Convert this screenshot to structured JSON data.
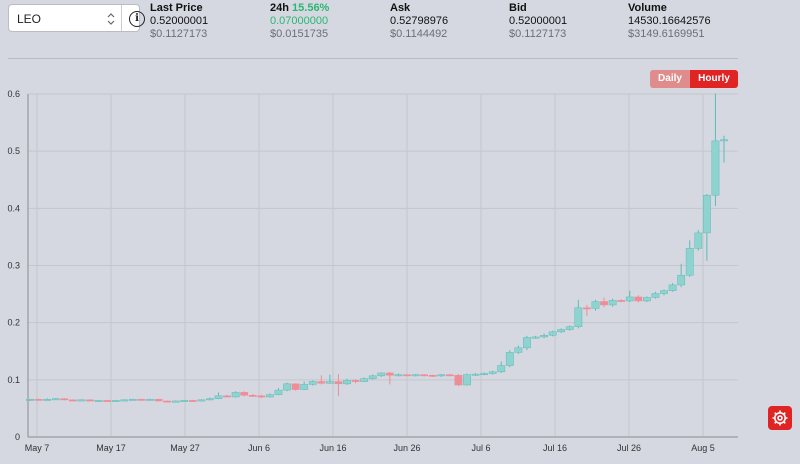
{
  "market": {
    "selected_symbol": "LEO",
    "info_icon": "info-circle-icon"
  },
  "stats": {
    "last_price": {
      "label": "Last Price",
      "value": "0.52000001",
      "usd": "$0.1127173"
    },
    "change_24h": {
      "label": "24h",
      "percent": "15.56%",
      "value": "0.07000000",
      "usd": "$0.0151735"
    },
    "ask": {
      "label": "Ask",
      "value": "0.52798976",
      "usd": "$0.1144492"
    },
    "bid": {
      "label": "Bid",
      "value": "0.52000001",
      "usd": "$0.1127173"
    },
    "volume": {
      "label": "Volume",
      "value": "14530.16642576",
      "usd": "$3149.6169951"
    }
  },
  "interval_toggle": {
    "daily_label": "Daily",
    "hourly_label": "Hourly",
    "active": "Hourly"
  },
  "settings_icon": "gear-icon",
  "colors": {
    "up": "#8fd3d0",
    "up_border": "#5bbcb8",
    "down": "#f08c96",
    "accent": "#e02424",
    "positive_text": "#2bb673"
  },
  "chart_data": {
    "type": "candlestick",
    "x_tick_labels": [
      "May 7",
      "May 17",
      "May 27",
      "Jun 6",
      "Jun 16",
      "Jun 26",
      "Jul 6",
      "Jul 16",
      "Jul 26",
      "Aug 5"
    ],
    "y_tick_labels": [
      "0",
      "0.1",
      "0.2",
      "0.3",
      "0.4",
      "0.5",
      "0.6"
    ],
    "ylim": [
      0,
      0.6
    ],
    "grid": true,
    "candles": [
      {
        "o": 0.064,
        "c": 0.066,
        "h": 0.067,
        "l": 0.063
      },
      {
        "o": 0.066,
        "c": 0.065,
        "h": 0.067,
        "l": 0.064
      },
      {
        "o": 0.065,
        "c": 0.066,
        "h": 0.068,
        "l": 0.064
      },
      {
        "o": 0.066,
        "c": 0.067,
        "h": 0.068,
        "l": 0.065
      },
      {
        "o": 0.067,
        "c": 0.065,
        "h": 0.068,
        "l": 0.064
      },
      {
        "o": 0.065,
        "c": 0.064,
        "h": 0.066,
        "l": 0.063
      },
      {
        "o": 0.064,
        "c": 0.065,
        "h": 0.066,
        "l": 0.063
      },
      {
        "o": 0.065,
        "c": 0.063,
        "h": 0.066,
        "l": 0.062
      },
      {
        "o": 0.063,
        "c": 0.064,
        "h": 0.065,
        "l": 0.062
      },
      {
        "o": 0.064,
        "c": 0.063,
        "h": 0.065,
        "l": 0.062
      },
      {
        "o": 0.063,
        "c": 0.064,
        "h": 0.065,
        "l": 0.062
      },
      {
        "o": 0.064,
        "c": 0.065,
        "h": 0.066,
        "l": 0.063
      },
      {
        "o": 0.065,
        "c": 0.066,
        "h": 0.067,
        "l": 0.064
      },
      {
        "o": 0.066,
        "c": 0.065,
        "h": 0.067,
        "l": 0.064
      },
      {
        "o": 0.065,
        "c": 0.066,
        "h": 0.067,
        "l": 0.064
      },
      {
        "o": 0.066,
        "c": 0.063,
        "h": 0.067,
        "l": 0.062
      },
      {
        "o": 0.063,
        "c": 0.062,
        "h": 0.064,
        "l": 0.061
      },
      {
        "o": 0.062,
        "c": 0.063,
        "h": 0.064,
        "l": 0.061
      },
      {
        "o": 0.063,
        "c": 0.064,
        "h": 0.065,
        "l": 0.062
      },
      {
        "o": 0.064,
        "c": 0.063,
        "h": 0.065,
        "l": 0.062
      },
      {
        "o": 0.063,
        "c": 0.065,
        "h": 0.066,
        "l": 0.062
      },
      {
        "o": 0.065,
        "c": 0.067,
        "h": 0.069,
        "l": 0.064
      },
      {
        "o": 0.067,
        "c": 0.072,
        "h": 0.078,
        "l": 0.066
      },
      {
        "o": 0.072,
        "c": 0.07,
        "h": 0.074,
        "l": 0.069
      },
      {
        "o": 0.07,
        "c": 0.078,
        "h": 0.08,
        "l": 0.069
      },
      {
        "o": 0.078,
        "c": 0.073,
        "h": 0.08,
        "l": 0.071
      },
      {
        "o": 0.073,
        "c": 0.072,
        "h": 0.075,
        "l": 0.07
      },
      {
        "o": 0.072,
        "c": 0.07,
        "h": 0.074,
        "l": 0.068
      },
      {
        "o": 0.07,
        "c": 0.074,
        "h": 0.076,
        "l": 0.069
      },
      {
        "o": 0.074,
        "c": 0.082,
        "h": 0.086,
        "l": 0.073
      },
      {
        "o": 0.082,
        "c": 0.093,
        "h": 0.095,
        "l": 0.08
      },
      {
        "o": 0.093,
        "c": 0.083,
        "h": 0.094,
        "l": 0.081
      },
      {
        "o": 0.083,
        "c": 0.092,
        "h": 0.097,
        "l": 0.082
      },
      {
        "o": 0.092,
        "c": 0.097,
        "h": 0.099,
        "l": 0.09
      },
      {
        "o": 0.097,
        "c": 0.094,
        "h": 0.108,
        "l": 0.092
      },
      {
        "o": 0.094,
        "c": 0.097,
        "h": 0.109,
        "l": 0.093
      },
      {
        "o": 0.097,
        "c": 0.093,
        "h": 0.11,
        "l": 0.072
      },
      {
        "o": 0.093,
        "c": 0.099,
        "h": 0.102,
        "l": 0.091
      },
      {
        "o": 0.099,
        "c": 0.097,
        "h": 0.101,
        "l": 0.094
      },
      {
        "o": 0.097,
        "c": 0.102,
        "h": 0.104,
        "l": 0.096
      },
      {
        "o": 0.102,
        "c": 0.107,
        "h": 0.109,
        "l": 0.1
      },
      {
        "o": 0.107,
        "c": 0.112,
        "h": 0.113,
        "l": 0.105
      },
      {
        "o": 0.112,
        "c": 0.108,
        "h": 0.114,
        "l": 0.092
      },
      {
        "o": 0.108,
        "c": 0.109,
        "h": 0.111,
        "l": 0.106
      },
      {
        "o": 0.109,
        "c": 0.108,
        "h": 0.11,
        "l": 0.106
      },
      {
        "o": 0.108,
        "c": 0.109,
        "h": 0.11,
        "l": 0.106
      },
      {
        "o": 0.109,
        "c": 0.108,
        "h": 0.11,
        "l": 0.106
      },
      {
        "o": 0.108,
        "c": 0.107,
        "h": 0.109,
        "l": 0.105
      },
      {
        "o": 0.107,
        "c": 0.109,
        "h": 0.11,
        "l": 0.105
      },
      {
        "o": 0.109,
        "c": 0.108,
        "h": 0.11,
        "l": 0.106
      },
      {
        "o": 0.108,
        "c": 0.091,
        "h": 0.11,
        "l": 0.089
      },
      {
        "o": 0.091,
        "c": 0.109,
        "h": 0.111,
        "l": 0.09
      },
      {
        "o": 0.109,
        "c": 0.11,
        "h": 0.112,
        "l": 0.107
      },
      {
        "o": 0.11,
        "c": 0.111,
        "h": 0.113,
        "l": 0.108
      },
      {
        "o": 0.111,
        "c": 0.114,
        "h": 0.116,
        "l": 0.109
      },
      {
        "o": 0.114,
        "c": 0.125,
        "h": 0.132,
        "l": 0.112
      },
      {
        "o": 0.125,
        "c": 0.148,
        "h": 0.152,
        "l": 0.122
      },
      {
        "o": 0.148,
        "c": 0.156,
        "h": 0.16,
        "l": 0.145
      },
      {
        "o": 0.156,
        "c": 0.174,
        "h": 0.177,
        "l": 0.152
      },
      {
        "o": 0.174,
        "c": 0.175,
        "h": 0.177,
        "l": 0.172
      },
      {
        "o": 0.175,
        "c": 0.178,
        "h": 0.181,
        "l": 0.173
      },
      {
        "o": 0.178,
        "c": 0.184,
        "h": 0.186,
        "l": 0.176
      },
      {
        "o": 0.184,
        "c": 0.188,
        "h": 0.19,
        "l": 0.182
      },
      {
        "o": 0.188,
        "c": 0.193,
        "h": 0.195,
        "l": 0.186
      },
      {
        "o": 0.193,
        "c": 0.226,
        "h": 0.24,
        "l": 0.19
      },
      {
        "o": 0.226,
        "c": 0.225,
        "h": 0.231,
        "l": 0.212
      },
      {
        "o": 0.225,
        "c": 0.237,
        "h": 0.24,
        "l": 0.221
      },
      {
        "o": 0.237,
        "c": 0.231,
        "h": 0.244,
        "l": 0.227
      },
      {
        "o": 0.231,
        "c": 0.239,
        "h": 0.242,
        "l": 0.228
      },
      {
        "o": 0.239,
        "c": 0.238,
        "h": 0.241,
        "l": 0.236
      },
      {
        "o": 0.238,
        "c": 0.245,
        "h": 0.256,
        "l": 0.236
      },
      {
        "o": 0.245,
        "c": 0.238,
        "h": 0.248,
        "l": 0.235
      },
      {
        "o": 0.238,
        "c": 0.244,
        "h": 0.246,
        "l": 0.236
      },
      {
        "o": 0.244,
        "c": 0.251,
        "h": 0.254,
        "l": 0.242
      },
      {
        "o": 0.251,
        "c": 0.256,
        "h": 0.258,
        "l": 0.248
      },
      {
        "o": 0.256,
        "c": 0.266,
        "h": 0.269,
        "l": 0.254
      },
      {
        "o": 0.266,
        "c": 0.283,
        "h": 0.303,
        "l": 0.262
      },
      {
        "o": 0.283,
        "c": 0.33,
        "h": 0.344,
        "l": 0.28
      },
      {
        "o": 0.33,
        "c": 0.357,
        "h": 0.362,
        "l": 0.326
      },
      {
        "o": 0.357,
        "c": 0.423,
        "h": 0.425,
        "l": 0.308
      },
      {
        "o": 0.423,
        "c": 0.518,
        "h": 0.601,
        "l": 0.404
      },
      {
        "o": 0.52,
        "c": 0.52,
        "h": 0.527,
        "l": 0.48
      }
    ]
  }
}
